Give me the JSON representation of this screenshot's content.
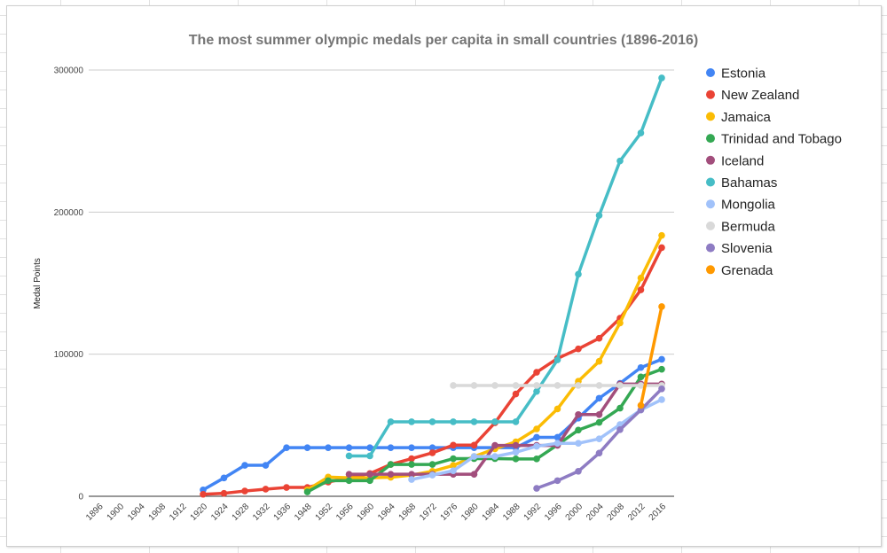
{
  "chart_data": {
    "type": "line",
    "title": "The most summer olympic medals per capita in small countries (1896-2016)",
    "xlabel": "",
    "ylabel": "Medal Points",
    "ylim": [
      0,
      300000
    ],
    "yticks": [
      0,
      100000,
      200000,
      300000
    ],
    "ytick_labels": [
      "0",
      "100000",
      "200000",
      "300000"
    ],
    "grid": true,
    "legend_position": "right",
    "categories": [
      "1896",
      "1900",
      "1904",
      "1908",
      "1912",
      "1920",
      "1924",
      "1928",
      "1932",
      "1936",
      "1948",
      "1952",
      "1956",
      "1960",
      "1964",
      "1968",
      "1972",
      "1976",
      "1980",
      "1984",
      "1988",
      "1992",
      "1996",
      "2000",
      "2004",
      "2008",
      "2012",
      "2016"
    ],
    "series": [
      {
        "name": "Estonia",
        "color": "#4285f4",
        "values": [
          null,
          null,
          null,
          null,
          null,
          4500,
          12900,
          21800,
          21800,
          34200,
          34200,
          34200,
          34200,
          34200,
          34200,
          34200,
          34200,
          34200,
          34200,
          34200,
          34200,
          41500,
          41500,
          55000,
          69000,
          79500,
          90600,
          96400
        ]
      },
      {
        "name": "New Zealand",
        "color": "#ea4335",
        "values": [
          null,
          null,
          null,
          null,
          null,
          1400,
          2100,
          3700,
          5000,
          6200,
          6200,
          10000,
          13000,
          16000,
          22400,
          26500,
          30600,
          36000,
          36000,
          51700,
          72000,
          87300,
          97000,
          103700,
          111200,
          125300,
          145300,
          175000
        ]
      },
      {
        "name": "Jamaica",
        "color": "#fbbc04",
        "values": [
          null,
          null,
          null,
          null,
          null,
          null,
          null,
          null,
          null,
          null,
          4500,
          13500,
          13000,
          13000,
          13400,
          14900,
          17600,
          21700,
          28000,
          33400,
          38300,
          47400,
          61500,
          81000,
          95000,
          122000,
          153600,
          183600
        ]
      },
      {
        "name": "Trinidad and Tobago",
        "color": "#34a853",
        "values": [
          null,
          null,
          null,
          null,
          null,
          null,
          null,
          null,
          null,
          null,
          3100,
          11000,
          11000,
          11000,
          22400,
          22400,
          22400,
          26500,
          26500,
          26500,
          26300,
          26300,
          36200,
          46600,
          52000,
          62000,
          84000,
          89400
        ]
      },
      {
        "name": "Iceland",
        "color": "#a24e7c",
        "values": [
          null,
          null,
          null,
          null,
          null,
          null,
          null,
          null,
          null,
          null,
          null,
          null,
          15500,
          15500,
          15500,
          15500,
          15500,
          15500,
          15500,
          35800,
          35800,
          35800,
          35800,
          57500,
          57500,
          79000,
          79000,
          79000
        ]
      },
      {
        "name": "Bahamas",
        "color": "#46bdc6",
        "values": [
          null,
          null,
          null,
          null,
          null,
          null,
          null,
          null,
          null,
          null,
          null,
          null,
          28400,
          28400,
          52400,
          52400,
          52400,
          52400,
          52400,
          52400,
          52400,
          73800,
          96000,
          156300,
          197700,
          236000,
          255700,
          294400
        ]
      },
      {
        "name": "Mongolia",
        "color": "#a1c2fa",
        "values": [
          null,
          null,
          null,
          null,
          null,
          null,
          null,
          null,
          null,
          null,
          null,
          null,
          null,
          null,
          null,
          11800,
          14900,
          18000,
          28000,
          28000,
          31000,
          35200,
          37300,
          37300,
          40400,
          50500,
          60800,
          68000
        ]
      },
      {
        "name": "Bermuda",
        "color": "#d9d9d9",
        "values": [
          null,
          null,
          null,
          null,
          null,
          null,
          null,
          null,
          null,
          null,
          null,
          null,
          null,
          null,
          null,
          null,
          null,
          78000,
          78000,
          78000,
          78000,
          78000,
          78000,
          78000,
          78000,
          78000,
          78000,
          78000
        ]
      },
      {
        "name": "Slovenia",
        "color": "#8e7cc3",
        "values": [
          null,
          null,
          null,
          null,
          null,
          null,
          null,
          null,
          null,
          null,
          null,
          null,
          null,
          null,
          null,
          null,
          null,
          null,
          null,
          null,
          null,
          5600,
          11000,
          17600,
          30400,
          46900,
          60800,
          75600
        ]
      },
      {
        "name": "Grenada",
        "color": "#ff9900",
        "values": [
          null,
          null,
          null,
          null,
          null,
          null,
          null,
          null,
          null,
          null,
          null,
          null,
          null,
          null,
          null,
          null,
          null,
          null,
          null,
          null,
          null,
          null,
          null,
          null,
          null,
          null,
          64000,
          133500
        ]
      }
    ]
  }
}
